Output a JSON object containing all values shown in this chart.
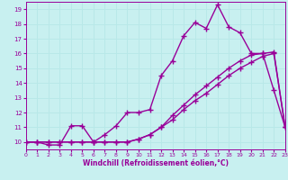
{
  "bg_color": "#c8f0f0",
  "line_color": "#990099",
  "grid_color": "#b8e8e8",
  "xlabel": "Windchill (Refroidissement éolien,°C)",
  "xlim": [
    0,
    23
  ],
  "ylim": [
    9.5,
    19.5
  ],
  "xticks": [
    0,
    1,
    2,
    3,
    4,
    5,
    6,
    7,
    8,
    9,
    10,
    11,
    12,
    13,
    14,
    15,
    16,
    17,
    18,
    19,
    20,
    21,
    22,
    23
  ],
  "yticks": [
    10,
    11,
    12,
    13,
    14,
    15,
    16,
    17,
    18,
    19
  ],
  "line1_x": [
    0,
    1,
    2,
    3,
    4,
    5,
    6,
    7,
    8,
    9,
    10,
    11,
    12,
    13,
    14,
    15,
    16,
    17,
    18,
    19,
    20,
    21,
    22,
    23
  ],
  "line1_y": [
    10,
    10,
    9.8,
    9.8,
    11.1,
    11.1,
    10.0,
    10.5,
    11.1,
    12.0,
    12.0,
    12.2,
    14.5,
    15.5,
    17.2,
    18.1,
    17.7,
    19.3,
    17.8,
    17.4,
    16.0,
    16.0,
    13.5,
    11.0
  ],
  "line2_x": [
    0,
    1,
    2,
    3,
    4,
    5,
    6,
    7,
    8,
    9,
    10,
    11,
    12,
    13,
    14,
    15,
    16,
    17,
    18,
    19,
    20,
    21,
    22,
    23
  ],
  "line2_y": [
    10,
    10,
    10,
    10,
    10,
    10,
    10,
    10,
    10,
    10,
    10.2,
    10.5,
    11.0,
    11.8,
    12.5,
    13.2,
    13.8,
    14.4,
    15.0,
    15.5,
    15.9,
    16.0,
    16.1,
    11.0
  ],
  "line3_x": [
    0,
    1,
    2,
    3,
    4,
    5,
    6,
    7,
    8,
    9,
    10,
    11,
    12,
    13,
    14,
    15,
    16,
    17,
    18,
    19,
    20,
    21,
    22,
    23
  ],
  "line3_y": [
    10,
    10,
    10,
    10,
    10,
    10,
    10,
    10,
    10,
    10,
    10.2,
    10.5,
    11.0,
    11.5,
    12.2,
    12.8,
    13.3,
    13.9,
    14.5,
    15.0,
    15.4,
    15.8,
    16.0,
    11.0
  ],
  "marker": "+",
  "markersize": 4,
  "linewidth": 1.0
}
